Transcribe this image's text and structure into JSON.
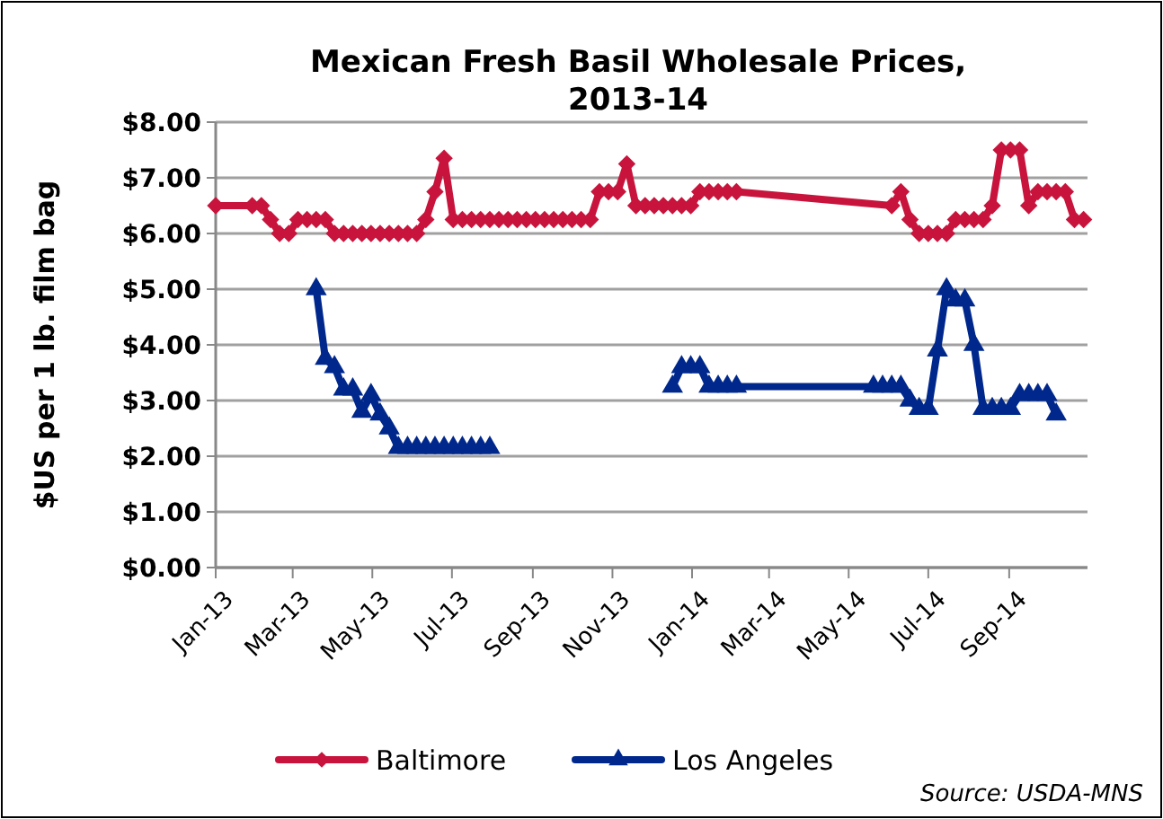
{
  "chart_data": {
    "type": "line",
    "title": "Mexican Fresh Basil Wholesale Prices, 2013-14",
    "ylabel": "$US per 1 lb. film bag",
    "annotations": [
      "Source: USDA-MNS"
    ],
    "xlim": [
      "2013-01-01",
      "2014-10-31"
    ],
    "xticks": [
      {
        "value": "2013-01-01",
        "label": "Jan-13"
      },
      {
        "value": "2013-03-01",
        "label": "Mar-13"
      },
      {
        "value": "2013-05-01",
        "label": "May-13"
      },
      {
        "value": "2013-07-01",
        "label": "Jul-13"
      },
      {
        "value": "2013-09-01",
        "label": "Sep-13"
      },
      {
        "value": "2013-11-01",
        "label": "Nov-13"
      },
      {
        "value": "2014-01-01",
        "label": "Jan-14"
      },
      {
        "value": "2014-03-01",
        "label": "Mar-14"
      },
      {
        "value": "2014-05-01",
        "label": "May-14"
      },
      {
        "value": "2014-07-01",
        "label": "Jul-14"
      },
      {
        "value": "2014-09-01",
        "label": "Sep-14"
      }
    ],
    "ylim": [
      0,
      8
    ],
    "yticks": [
      {
        "value": 0,
        "label": "$0.00"
      },
      {
        "value": 1,
        "label": "$1.00"
      },
      {
        "value": 2,
        "label": "$2.00"
      },
      {
        "value": 3,
        "label": "$3.00"
      },
      {
        "value": 4,
        "label": "$4.00"
      },
      {
        "value": 5,
        "label": "$5.00"
      },
      {
        "value": 6,
        "label": "$6.00"
      },
      {
        "value": 7,
        "label": "$7.00"
      },
      {
        "value": 8,
        "label": "$8.00"
      }
    ],
    "grid": "y",
    "legend": "bottom",
    "line_style": "solid",
    "series": [
      {
        "name": "Baltimore",
        "color": "#c8143c",
        "marker": "diamond",
        "x": [
          "2013-01-01",
          "2013-01-29",
          "2013-02-05",
          "2013-02-12",
          "2013-02-19",
          "2013-02-26",
          "2013-03-05",
          "2013-03-12",
          "2013-03-19",
          "2013-03-26",
          "2013-04-02",
          "2013-04-09",
          "2013-04-16",
          "2013-04-23",
          "2013-04-30",
          "2013-05-07",
          "2013-05-14",
          "2013-05-21",
          "2013-05-28",
          "2013-06-04",
          "2013-06-11",
          "2013-06-18",
          "2013-06-25",
          "2013-07-02",
          "2013-07-09",
          "2013-07-16",
          "2013-07-23",
          "2013-07-30",
          "2013-08-06",
          "2013-08-13",
          "2013-08-20",
          "2013-08-27",
          "2013-09-03",
          "2013-09-10",
          "2013-09-17",
          "2013-09-24",
          "2013-10-01",
          "2013-10-08",
          "2013-10-15",
          "2013-10-22",
          "2013-10-29",
          "2013-11-05",
          "2013-11-12",
          "2013-11-19",
          "2013-11-26",
          "2013-12-03",
          "2013-12-10",
          "2013-12-17",
          "2013-12-24",
          "2013-12-31",
          "2014-01-07",
          "2014-01-14",
          "2014-01-21",
          "2014-01-28",
          "2014-02-04",
          "2014-06-03",
          "2014-06-10",
          "2014-06-17",
          "2014-06-24",
          "2014-07-01",
          "2014-07-08",
          "2014-07-15",
          "2014-07-22",
          "2014-07-29",
          "2014-08-05",
          "2014-08-12",
          "2014-08-19",
          "2014-08-26",
          "2014-09-02",
          "2014-09-09",
          "2014-09-16",
          "2014-09-23",
          "2014-09-30",
          "2014-10-07",
          "2014-10-14",
          "2014-10-21",
          "2014-10-28"
        ],
        "values": [
          6.5,
          6.5,
          6.5,
          6.25,
          6.0,
          6.0,
          6.25,
          6.25,
          6.25,
          6.25,
          6.0,
          6.0,
          6.0,
          6.0,
          6.0,
          6.0,
          6.0,
          6.0,
          6.0,
          6.0,
          6.25,
          6.75,
          7.35,
          6.25,
          6.25,
          6.25,
          6.25,
          6.25,
          6.25,
          6.25,
          6.25,
          6.25,
          6.25,
          6.25,
          6.25,
          6.25,
          6.25,
          6.25,
          6.25,
          6.75,
          6.75,
          6.75,
          7.25,
          6.5,
          6.5,
          6.5,
          6.5,
          6.5,
          6.5,
          6.5,
          6.75,
          6.75,
          6.75,
          6.75,
          6.75,
          6.5,
          6.75,
          6.25,
          6.0,
          6.0,
          6.0,
          6.0,
          6.25,
          6.25,
          6.25,
          6.25,
          6.5,
          7.5,
          7.5,
          7.5,
          6.5,
          6.75,
          6.75,
          6.75,
          6.75,
          6.25,
          6.25
        ]
      },
      {
        "name": "Los Angeles",
        "color": "#00288c",
        "marker": "triangle",
        "x": [
          "2013-03-19",
          "2013-03-26",
          "2013-04-02",
          "2013-04-09",
          "2013-04-16",
          "2013-04-23",
          "2013-04-30",
          "2013-05-07",
          "2013-05-14",
          "2013-05-21",
          "2013-05-28",
          "2013-06-04",
          "2013-06-11",
          "2013-06-18",
          "2013-06-25",
          "2013-07-02",
          "2013-07-09",
          "2013-07-16",
          "2013-07-23",
          "2013-07-30",
          "2013-09-15",
          "2013-12-17",
          "2013-12-24",
          "2013-12-31",
          "2014-01-07",
          "2014-01-14",
          "2014-01-21",
          "2014-01-28",
          "2014-02-04",
          "2014-05-20",
          "2014-05-27",
          "2014-06-03",
          "2014-06-10",
          "2014-06-17",
          "2014-06-24",
          "2014-07-01",
          "2014-07-08",
          "2014-07-15",
          "2014-07-22",
          "2014-07-29",
          "2014-08-05",
          "2014-08-12",
          "2014-08-19",
          "2014-08-26",
          "2014-09-02",
          "2014-09-09",
          "2014-09-16",
          "2014-09-23",
          "2014-09-30",
          "2014-10-07"
        ],
        "values": [
          5.0,
          3.75,
          3.6,
          3.2,
          3.2,
          2.8,
          3.1,
          2.75,
          2.5,
          2.15,
          2.15,
          2.15,
          2.15,
          2.15,
          2.15,
          2.15,
          2.15,
          2.15,
          2.15,
          2.15,
          null,
          3.25,
          3.6,
          3.6,
          3.6,
          3.25,
          3.25,
          3.25,
          3.25,
          3.25,
          3.25,
          3.25,
          3.25,
          3.0,
          2.85,
          2.85,
          3.9,
          5.0,
          4.8,
          4.8,
          4.0,
          2.85,
          2.85,
          2.85,
          2.85,
          3.1,
          3.1,
          3.1,
          3.1,
          2.75
        ]
      }
    ]
  }
}
